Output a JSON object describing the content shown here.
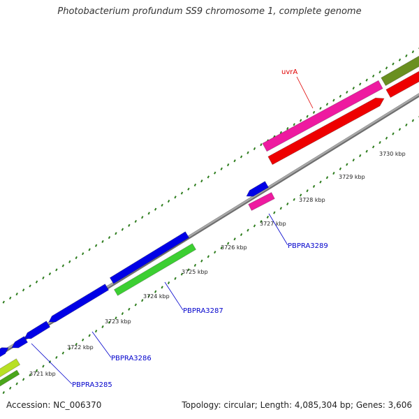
{
  "title": "Photobacterium profundum SS9 chromosome 1, complete genome",
  "footer": {
    "accession": "Accession: NC_006370",
    "summary": "Topology: circular; Length: 4,085,304 bp; Genes: 3,606"
  },
  "ticks": [
    {
      "label": "3721 kbp"
    },
    {
      "label": "3722 kbp"
    },
    {
      "label": "3723 kbp"
    },
    {
      "label": "3724 kbp"
    },
    {
      "label": "3725 kbp"
    },
    {
      "label": "3726 kbp"
    },
    {
      "label": "3727 kbp"
    },
    {
      "label": "3728 kbp"
    },
    {
      "label": "3729 kbp"
    },
    {
      "label": "3730 kbp"
    }
  ],
  "gene_labels": [
    {
      "name": "PBPRA3285",
      "color": "#0000cc"
    },
    {
      "name": "PBPRA3286",
      "color": "#0000cc"
    },
    {
      "name": "PBPRA3287",
      "color": "#0000cc"
    },
    {
      "name": "PBPRA3289",
      "color": "#0000cc"
    },
    {
      "name": "uvrA",
      "color": "#e00000"
    }
  ],
  "colors": {
    "backbone": "#9a9a9a",
    "tick_dots": "#2e7d1e",
    "cds_blue": "#0000e6",
    "cds_green": "#3ccf32",
    "cds_pink": "#ee1aa0",
    "cds_red": "#ee0000",
    "cds_olive": "#6a8f20",
    "cds_lime": "#b8e024"
  }
}
